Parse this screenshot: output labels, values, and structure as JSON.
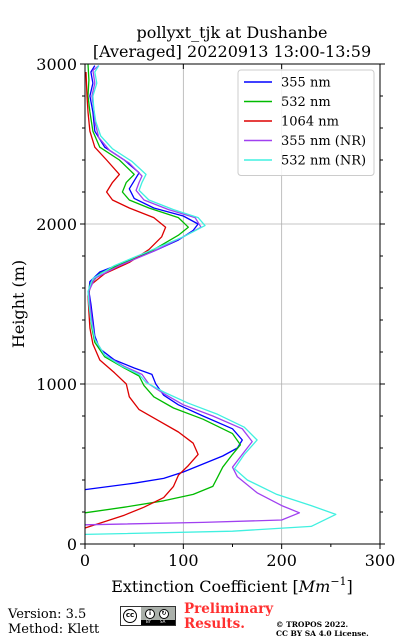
{
  "chart_data": {
    "type": "line",
    "title": "pollyxt_tjk at Dushanbe",
    "subtitle": "[Averaged] 20220913 13:00-13:59",
    "xlabel": "Extinction Coefficient [Mm⁻¹]",
    "ylabel": "Height (m)",
    "xlim": [
      0,
      300
    ],
    "ylim": [
      0,
      3000
    ],
    "x_ticks": [
      0,
      100,
      200,
      300
    ],
    "y_ticks": [
      0,
      1000,
      2000,
      3000
    ],
    "grid": true,
    "legend_position": "top-right",
    "series": [
      {
        "name": "355 nm",
        "color": "#0000ff",
        "points": [
          [
            0,
            340
          ],
          [
            50,
            380
          ],
          [
            80,
            410
          ],
          [
            100,
            450
          ],
          [
            120,
            500
          ],
          [
            140,
            550
          ],
          [
            155,
            600
          ],
          [
            160,
            650
          ],
          [
            150,
            720
          ],
          [
            120,
            800
          ],
          [
            95,
            870
          ],
          [
            80,
            930
          ],
          [
            72,
            1000
          ],
          [
            68,
            1060
          ],
          [
            50,
            1100
          ],
          [
            30,
            1150
          ],
          [
            15,
            1220
          ],
          [
            10,
            1300
          ],
          [
            8,
            1400
          ],
          [
            6,
            1500
          ],
          [
            4,
            1580
          ],
          [
            5,
            1640
          ],
          [
            15,
            1700
          ],
          [
            40,
            1760
          ],
          [
            70,
            1830
          ],
          [
            95,
            1900
          ],
          [
            110,
            1960
          ],
          [
            115,
            2000
          ],
          [
            100,
            2050
          ],
          [
            70,
            2100
          ],
          [
            50,
            2160
          ],
          [
            45,
            2220
          ],
          [
            50,
            2270
          ],
          [
            55,
            2320
          ],
          [
            40,
            2400
          ],
          [
            20,
            2480
          ],
          [
            10,
            2580
          ],
          [
            8,
            2700
          ],
          [
            5,
            2800
          ],
          [
            8,
            2880
          ],
          [
            6,
            2950
          ],
          [
            10,
            2990
          ]
        ]
      },
      {
        "name": "532 nm",
        "color": "#00bb00",
        "points": [
          [
            0,
            195
          ],
          [
            40,
            230
          ],
          [
            80,
            270
          ],
          [
            110,
            310
          ],
          [
            130,
            360
          ],
          [
            135,
            420
          ],
          [
            140,
            480
          ],
          [
            150,
            560
          ],
          [
            158,
            620
          ],
          [
            150,
            690
          ],
          [
            120,
            780
          ],
          [
            90,
            850
          ],
          [
            70,
            920
          ],
          [
            60,
            990
          ],
          [
            55,
            1050
          ],
          [
            40,
            1100
          ],
          [
            20,
            1170
          ],
          [
            10,
            1260
          ],
          [
            7,
            1350
          ],
          [
            5,
            1450
          ],
          [
            4,
            1550
          ],
          [
            5,
            1620
          ],
          [
            15,
            1690
          ],
          [
            40,
            1760
          ],
          [
            70,
            1840
          ],
          [
            95,
            1930
          ],
          [
            105,
            1980
          ],
          [
            95,
            2040
          ],
          [
            65,
            2100
          ],
          [
            45,
            2150
          ],
          [
            38,
            2200
          ],
          [
            42,
            2260
          ],
          [
            50,
            2310
          ],
          [
            35,
            2400
          ],
          [
            15,
            2480
          ],
          [
            8,
            2580
          ],
          [
            5,
            2700
          ],
          [
            3,
            2800
          ],
          [
            4,
            2900
          ],
          [
            3,
            3000
          ]
        ]
      },
      {
        "name": "1064 nm",
        "color": "#dd0000",
        "points": [
          [
            0,
            100
          ],
          [
            20,
            140
          ],
          [
            40,
            180
          ],
          [
            60,
            230
          ],
          [
            80,
            290
          ],
          [
            90,
            360
          ],
          [
            95,
            430
          ],
          [
            105,
            490
          ],
          [
            115,
            560
          ],
          [
            110,
            630
          ],
          [
            95,
            700
          ],
          [
            75,
            770
          ],
          [
            55,
            840
          ],
          [
            45,
            920
          ],
          [
            42,
            1000
          ],
          [
            30,
            1070
          ],
          [
            15,
            1150
          ],
          [
            8,
            1250
          ],
          [
            5,
            1350
          ],
          [
            4,
            1450
          ],
          [
            3,
            1550
          ],
          [
            6,
            1620
          ],
          [
            20,
            1690
          ],
          [
            45,
            1760
          ],
          [
            65,
            1840
          ],
          [
            78,
            1920
          ],
          [
            82,
            1980
          ],
          [
            70,
            2040
          ],
          [
            45,
            2100
          ],
          [
            28,
            2150
          ],
          [
            22,
            2200
          ],
          [
            28,
            2260
          ],
          [
            35,
            2310
          ],
          [
            22,
            2400
          ],
          [
            10,
            2480
          ],
          [
            5,
            2580
          ],
          [
            3,
            2700
          ],
          [
            2,
            2800
          ],
          [
            1,
            2950
          ]
        ]
      },
      {
        "name": "355 nm (NR)",
        "color": "#a040f0",
        "points": [
          [
            0,
            120
          ],
          [
            120,
            135
          ],
          [
            200,
            150
          ],
          [
            218,
            195
          ],
          [
            200,
            240
          ],
          [
            175,
            320
          ],
          [
            155,
            420
          ],
          [
            150,
            480
          ],
          [
            160,
            560
          ],
          [
            170,
            640
          ],
          [
            160,
            720
          ],
          [
            130,
            800
          ],
          [
            100,
            870
          ],
          [
            80,
            940
          ],
          [
            65,
            1000
          ],
          [
            58,
            1060
          ],
          [
            40,
            1110
          ],
          [
            20,
            1180
          ],
          [
            10,
            1280
          ],
          [
            7,
            1400
          ],
          [
            5,
            1500
          ],
          [
            4,
            1580
          ],
          [
            10,
            1660
          ],
          [
            35,
            1740
          ],
          [
            70,
            1830
          ],
          [
            100,
            1920
          ],
          [
            118,
            1980
          ],
          [
            112,
            2040
          ],
          [
            85,
            2090
          ],
          [
            60,
            2150
          ],
          [
            52,
            2210
          ],
          [
            55,
            2260
          ],
          [
            58,
            2300
          ],
          [
            45,
            2380
          ],
          [
            25,
            2460
          ],
          [
            14,
            2540
          ],
          [
            10,
            2640
          ],
          [
            9,
            2720
          ],
          [
            7,
            2800
          ],
          [
            10,
            2880
          ],
          [
            8,
            2960
          ],
          [
            14,
            2990
          ]
        ]
      },
      {
        "name": "532 nm (NR)",
        "color": "#40f0e0",
        "points": [
          [
            0,
            60
          ],
          [
            150,
            80
          ],
          [
            230,
            110
          ],
          [
            255,
            185
          ],
          [
            230,
            240
          ],
          [
            195,
            310
          ],
          [
            165,
            400
          ],
          [
            152,
            470
          ],
          [
            162,
            560
          ],
          [
            175,
            650
          ],
          [
            162,
            730
          ],
          [
            135,
            810
          ],
          [
            105,
            880
          ],
          [
            80,
            950
          ],
          [
            62,
            1010
          ],
          [
            55,
            1060
          ],
          [
            38,
            1110
          ],
          [
            20,
            1180
          ],
          [
            10,
            1280
          ],
          [
            6,
            1400
          ],
          [
            4,
            1500
          ],
          [
            3,
            1580
          ],
          [
            8,
            1660
          ],
          [
            30,
            1740
          ],
          [
            65,
            1830
          ],
          [
            100,
            1920
          ],
          [
            122,
            1990
          ],
          [
            115,
            2040
          ],
          [
            90,
            2090
          ],
          [
            65,
            2150
          ],
          [
            55,
            2210
          ],
          [
            58,
            2260
          ],
          [
            62,
            2310
          ],
          [
            48,
            2390
          ],
          [
            28,
            2470
          ],
          [
            16,
            2550
          ],
          [
            11,
            2640
          ],
          [
            9,
            2720
          ],
          [
            8,
            2800
          ],
          [
            12,
            2880
          ],
          [
            10,
            2950
          ],
          [
            14,
            2990
          ]
        ]
      }
    ]
  },
  "footer": {
    "version": "Version: 3.5",
    "method": "Method: Klett",
    "preliminary_line1": "Preliminary",
    "preliminary_line2": "Results.",
    "copyright_line1": "© TROPOS 2022.",
    "copyright_line2": "CC BY SA 4.0 License.",
    "cc_badge": {
      "main": "cc",
      "icons": [
        "i",
        "↻"
      ],
      "labels": [
        "BY",
        "SA"
      ]
    }
  }
}
